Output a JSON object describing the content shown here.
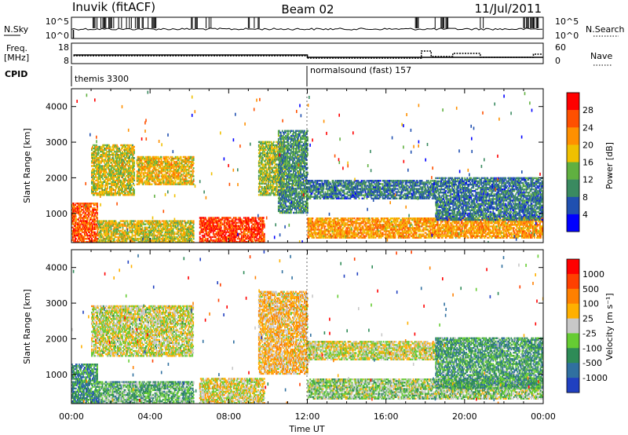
{
  "header": {
    "station": "Inuvik (fitACF)",
    "beam": "Beam 02",
    "date": "11/Jul/2011"
  },
  "summary_panels": {
    "nsky": {
      "label": "N.Sky",
      "ticks": [
        "10^5",
        "10^0"
      ],
      "right_label": "N.Search",
      "right_ticks": [
        "10^5",
        "10^0"
      ]
    },
    "freq": {
      "label_line1": "Freq.",
      "label_line2": "[MHz]",
      "ticks": [
        "18",
        "8"
      ],
      "right_label": "Nave",
      "right_ticks": [
        "60",
        "0"
      ]
    },
    "cpid": {
      "label": "CPID",
      "segments": [
        {
          "name": "themis 3300",
          "start_hour": 0
        },
        {
          "name": "normalsound (fast) 157",
          "start_hour": 12
        }
      ]
    }
  },
  "x_axis": {
    "label": "Time UT",
    "ticks": [
      "00:00",
      "04:00",
      "08:00",
      "12:00",
      "16:00",
      "20:00",
      "00:00"
    ]
  },
  "panels": [
    {
      "id": "power",
      "ylabel": "Slant Range [km]",
      "yticks": [
        "1000",
        "2000",
        "3000",
        "4000"
      ],
      "colorbar_label": "Power [dB]",
      "colorbar_ticks": [
        "4",
        "8",
        "12",
        "16",
        "20",
        "24",
        "28"
      ],
      "colors": [
        "#0000ff",
        "#2050b0",
        "#3a8a60",
        "#60b040",
        "#f0c000",
        "#ff9000",
        "#ff5000",
        "#ff0000"
      ]
    },
    {
      "id": "velocity",
      "ylabel": "Slant Range [km]",
      "yticks": [
        "1000",
        "2000",
        "3000",
        "4000"
      ],
      "colorbar_label": "Velocity [m s⁻¹]",
      "colorbar_ticks": [
        "1000",
        "500",
        "100",
        "25",
        "-25",
        "-100",
        "-500",
        "-1000"
      ],
      "colors": [
        "#2040c0",
        "#3070a0",
        "#2e8b57",
        "#66cc33",
        "#c8c8c8",
        "#ffb000",
        "#ff8000",
        "#ff4000",
        "#ff0000"
      ]
    }
  ],
  "chart_data": [
    {
      "type": "heatmap",
      "title": "",
      "xlabel": "Time UT",
      "ylabel": "Slant Range [km]",
      "xlim": [
        0,
        24
      ],
      "ylim": [
        180,
        4500
      ],
      "colorbar": "Power [dB]",
      "clim": [
        0,
        30
      ],
      "features": [
        {
          "t0": 0.0,
          "t1": 1.3,
          "r0": 180,
          "r1": 1300,
          "value": 24
        },
        {
          "t0": 1.3,
          "t1": 6.2,
          "r0": 180,
          "r1": 800,
          "value": 16
        },
        {
          "t0": 6.5,
          "t1": 9.8,
          "r0": 180,
          "r1": 900,
          "value": 26
        },
        {
          "t0": 1.0,
          "t1": 3.2,
          "r0": 1500,
          "r1": 2900,
          "value": 16
        },
        {
          "t0": 3.3,
          "t1": 6.2,
          "r0": 1800,
          "r1": 2600,
          "value": 18
        },
        {
          "t0": 9.5,
          "t1": 10.8,
          "r0": 1500,
          "r1": 3000,
          "value": 14
        },
        {
          "t0": 10.5,
          "t1": 12.0,
          "r0": 1000,
          "r1": 3300,
          "value": 10
        },
        {
          "t0": 12.0,
          "t1": 24.0,
          "r0": 300,
          "r1": 850,
          "value": 20
        },
        {
          "t0": 12.0,
          "t1": 18.5,
          "r0": 1400,
          "r1": 1900,
          "value": 8
        },
        {
          "t0": 18.5,
          "t1": 24.0,
          "r0": 800,
          "r1": 2000,
          "value": 8
        }
      ]
    },
    {
      "type": "heatmap",
      "title": "",
      "xlabel": "Time UT",
      "ylabel": "Slant Range [km]",
      "xlim": [
        0,
        24
      ],
      "ylim": [
        180,
        4500
      ],
      "colorbar": "Velocity [m s⁻¹]",
      "clim": [
        -1000,
        1000
      ],
      "features": [
        {
          "t0": 0.0,
          "t1": 1.3,
          "r0": 180,
          "r1": 1300,
          "value": -500
        },
        {
          "t0": 1.3,
          "t1": 6.2,
          "r0": 180,
          "r1": 800,
          "value": -300
        },
        {
          "t0": 6.5,
          "t1": 9.8,
          "r0": 180,
          "r1": 900,
          "value": 50
        },
        {
          "t0": 1.0,
          "t1": 6.2,
          "r0": 1500,
          "r1": 2900,
          "value": 0
        },
        {
          "t0": 9.5,
          "t1": 12.0,
          "r0": 1000,
          "r1": 3300,
          "value": 200
        },
        {
          "t0": 12.0,
          "t1": 24.0,
          "r0": 300,
          "r1": 850,
          "value": -150
        },
        {
          "t0": 12.0,
          "t1": 18.5,
          "r0": 1400,
          "r1": 1900,
          "value": 0
        },
        {
          "t0": 18.5,
          "t1": 24.0,
          "r0": 600,
          "r1": 2000,
          "value": -400
        }
      ]
    }
  ]
}
